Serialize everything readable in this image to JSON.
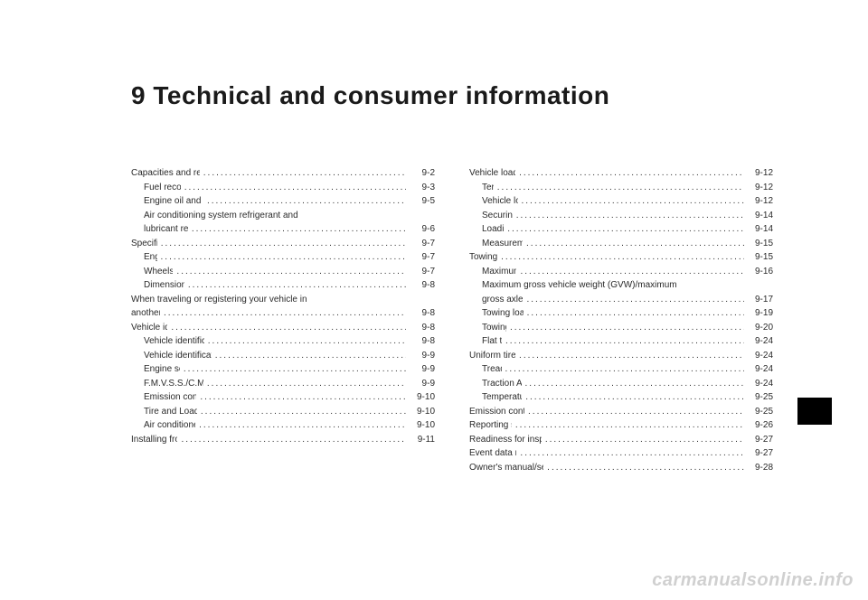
{
  "chapter_title": "9 Technical and consumer information",
  "watermark": "carmanualsonline.info",
  "col1": [
    {
      "label": "Capacities and recommended fuel/lubricants",
      "page": "9-2",
      "indent": false
    },
    {
      "label": "Fuel recommendation",
      "page": "9-3",
      "indent": true
    },
    {
      "label": "Engine oil and oil filter recommendation",
      "page": "9-5",
      "indent": true
    },
    {
      "label": "Air conditioning system refrigerant and",
      "page": "",
      "indent": true,
      "nodots": true
    },
    {
      "label": "lubricant recommendations",
      "page": "9-6",
      "indent": true
    },
    {
      "label": "Specifications",
      "page": "9-7",
      "indent": false
    },
    {
      "label": "Engine",
      "page": "9-7",
      "indent": true
    },
    {
      "label": "Wheels and tires",
      "page": "9-7",
      "indent": true
    },
    {
      "label": "Dimensions and weights",
      "page": "9-8",
      "indent": true
    },
    {
      "label": "When traveling or registering your vehicle in",
      "page": "",
      "indent": false,
      "nodots": true
    },
    {
      "label": "another country",
      "page": "9-8",
      "indent": false
    },
    {
      "label": "Vehicle identification",
      "page": "9-8",
      "indent": false
    },
    {
      "label": "Vehicle identification number (VIN) plate",
      "page": "9-8",
      "indent": true
    },
    {
      "label": "Vehicle identification number (chassis number)",
      "page": "9-9",
      "indent": true
    },
    {
      "label": "Engine serial number",
      "page": "9-9",
      "indent": true
    },
    {
      "label": "F.M.V.S.S./C.M.V.S.S. certification label",
      "page": "9-9",
      "indent": true
    },
    {
      "label": "Emission control information label",
      "page": "9-10",
      "indent": true
    },
    {
      "label": "Tire and Loading Information label",
      "page": "9-10",
      "indent": true
    },
    {
      "label": "Air conditioner specification label",
      "page": "9-10",
      "indent": true
    },
    {
      "label": "Installing front license plate",
      "page": "9-11",
      "indent": false
    }
  ],
  "col2": [
    {
      "label": "Vehicle loading information",
      "page": "9-12",
      "indent": false
    },
    {
      "label": "Terms",
      "page": "9-12",
      "indent": true
    },
    {
      "label": "Vehicle load capacity",
      "page": "9-12",
      "indent": true
    },
    {
      "label": "Securing the load",
      "page": "9-14",
      "indent": true
    },
    {
      "label": "Loading tips",
      "page": "9-14",
      "indent": true
    },
    {
      "label": "Measurement of weights",
      "page": "9-15",
      "indent": true
    },
    {
      "label": "Towing a trailer",
      "page": "9-15",
      "indent": false
    },
    {
      "label": "Maximum load limits",
      "page": "9-16",
      "indent": true
    },
    {
      "label": "Maximum gross vehicle weight (GVW)/maximum",
      "page": "",
      "indent": true,
      "nodots": true
    },
    {
      "label": "gross axle weight (GAW)",
      "page": "9-17",
      "indent": true
    },
    {
      "label": "Towing load/specification",
      "page": "9-19",
      "indent": true
    },
    {
      "label": "Towing safety",
      "page": "9-20",
      "indent": true
    },
    {
      "label": "Flat towing",
      "page": "9-24",
      "indent": true
    },
    {
      "label": "Uniform tire quality grading",
      "page": "9-24",
      "indent": false
    },
    {
      "label": "Treadwear",
      "page": "9-24",
      "indent": true
    },
    {
      "label": "Traction AA, A, B and C",
      "page": "9-24",
      "indent": true
    },
    {
      "label": "Temperature A, B and C",
      "page": "9-25",
      "indent": true
    },
    {
      "label": "Emission control system warranty",
      "page": "9-25",
      "indent": false
    },
    {
      "label": "Reporting safety defects",
      "page": "9-26",
      "indent": false
    },
    {
      "label": "Readiness for inspection/maintenance (I/M) test",
      "page": "9-27",
      "indent": false
    },
    {
      "label": "Event data recorders (EDR)",
      "page": "9-27",
      "indent": false
    },
    {
      "label": "Owner's manual/service manual order information",
      "page": "9-28",
      "indent": false
    }
  ]
}
